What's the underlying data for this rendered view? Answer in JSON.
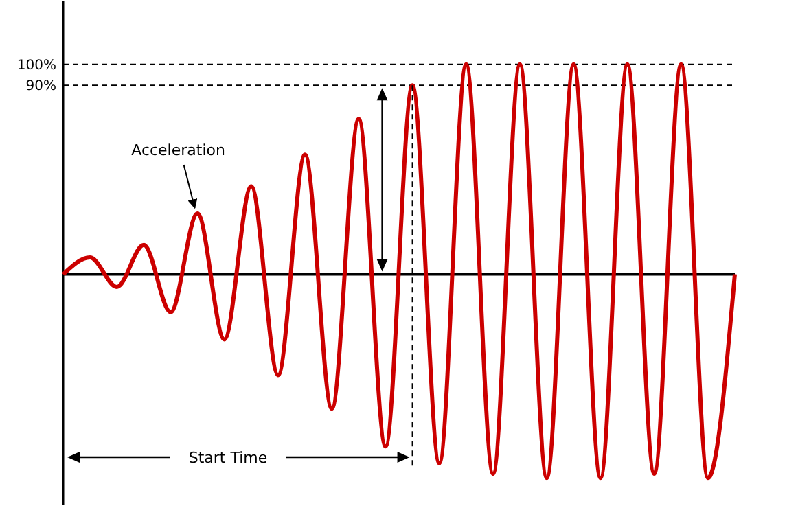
{
  "chart_data": {
    "type": "line",
    "categories": [
      null,
      null,
      null,
      null,
      null,
      null,
      null,
      null,
      null,
      null,
      null,
      null,
      null,
      null,
      null,
      null,
      null,
      null,
      null,
      null,
      null,
      null,
      null,
      null,
      null,
      null
    ],
    "series": [
      {
        "color": "#cc0000",
        "values": [
          0,
          8,
          -6,
          14,
          -18,
          29,
          -31,
          42,
          -48,
          57,
          -64,
          74,
          -82,
          90,
          -90,
          100,
          -95,
          100,
          -97,
          100,
          -97,
          100,
          -95,
          100,
          -97,
          0
        ]
      }
    ],
    "ylim": [
      -110,
      130
    ],
    "yticks": [
      {
        "value": 100,
        "label": "100%"
      },
      {
        "value": 90,
        "label": "90%"
      }
    ],
    "tick_labels": "y",
    "grid": false,
    "marker": "none",
    "line_style": "solid",
    "ref_lines": [
      {
        "axis": "y",
        "value": 100,
        "color": "#000000",
        "line_style": "dashed"
      },
      {
        "axis": "y",
        "value": 90,
        "color": "#000000",
        "line_style": "dashed"
      }
    ],
    "annotations": [
      "Acceleration",
      "Start Time"
    ]
  }
}
